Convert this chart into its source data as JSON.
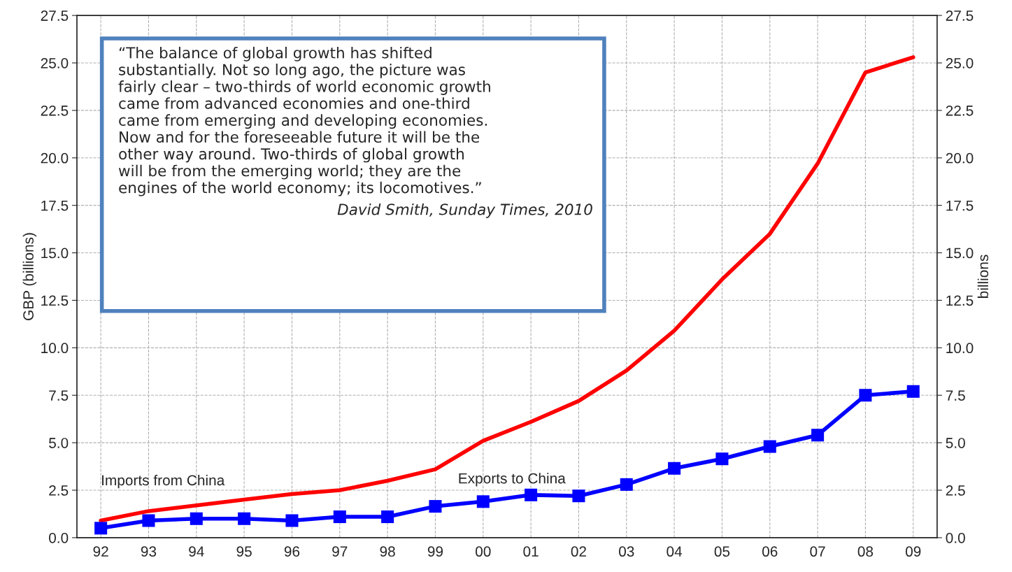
{
  "chart_data": {
    "type": "line",
    "ylabel": "GBP (billions)",
    "y2label": "billions",
    "categories": [
      "92",
      "93",
      "94",
      "95",
      "96",
      "97",
      "98",
      "99",
      "00",
      "01",
      "02",
      "03",
      "04",
      "05",
      "06",
      "07",
      "08",
      "09"
    ],
    "series": [
      {
        "name": "Imports from China",
        "color": "#ff0000",
        "marker": "none",
        "values": [
          0.9,
          1.4,
          1.7,
          2.0,
          2.3,
          2.5,
          3.0,
          3.6,
          5.1,
          6.1,
          7.2,
          8.8,
          10.9,
          13.6,
          16.0,
          19.7,
          24.5,
          25.3
        ]
      },
      {
        "name": "Exports to China",
        "color": "#0000ff",
        "marker": "square",
        "values": [
          0.5,
          0.9,
          1.0,
          1.0,
          0.9,
          1.1,
          1.1,
          1.65,
          1.9,
          2.25,
          2.2,
          2.8,
          3.65,
          4.15,
          4.8,
          5.4,
          7.5,
          7.7
        ]
      }
    ],
    "ylim": [
      0.0,
      27.5
    ],
    "yticks": [
      {
        "value": 0,
        "label": "0.0"
      },
      2.5,
      {
        "value": 5,
        "label": "5.0"
      },
      7.5,
      {
        "value": 10,
        "label": "10.0"
      },
      12.5,
      {
        "value": 15,
        "label": "15.0"
      },
      17.5,
      {
        "value": 20,
        "label": "20.0"
      },
      22.5,
      {
        "value": 25,
        "label": "25.0"
      },
      27.5
    ],
    "y2lim": [
      0.0,
      27.5
    ],
    "y2ticks": [
      {
        "value": 0,
        "label": "0.0"
      },
      2.5,
      {
        "value": 5,
        "label": "5.0"
      },
      7.5,
      {
        "value": 10,
        "label": "10.0"
      },
      12.5,
      {
        "value": 15,
        "label": "15.0"
      },
      17.5,
      {
        "value": 20,
        "label": "20.0"
      },
      22.5,
      {
        "value": 25,
        "label": "25.0"
      },
      27.5
    ],
    "grid": true,
    "legend": false,
    "line_style": "solid",
    "annotations": [
      "“The balance of global growth has shifted\nsubstantially. Not so long ago, the picture was\nfairly clear – two-thirds of world economic growth\ncame from advanced economies and one-third\ncame from emerging and developing economies.\nNow and for the foreseeable future it will be the\nother way around. Two-thirds of global growth\nwill be from the emerging world; they are the\nengines of the world economy; its locomotives.”",
      "David Smith, Sunday Times, 2010"
    ]
  }
}
